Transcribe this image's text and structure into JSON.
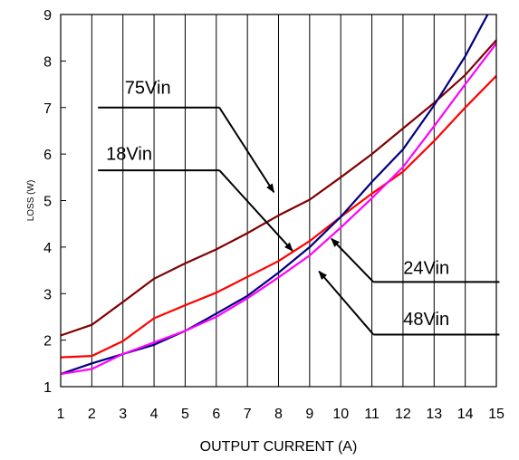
{
  "chart_data": {
    "type": "line",
    "xlabel": "OUTPUT CURRENT (A)",
    "ylabel": "LOSS (W)",
    "xlim": [
      1,
      15
    ],
    "ylim": [
      1,
      9
    ],
    "x_ticks": [
      1,
      2,
      3,
      4,
      5,
      6,
      7,
      8,
      9,
      10,
      11,
      12,
      13,
      14,
      15
    ],
    "y_ticks": [
      1,
      2,
      3,
      4,
      5,
      6,
      7,
      8,
      9
    ],
    "grid": "vertical",
    "series": [
      {
        "name": "75Vin",
        "color": "#800000",
        "x": [
          1,
          2,
          3,
          4,
          5,
          6,
          7,
          8,
          9,
          10,
          11,
          12,
          13,
          14,
          15
        ],
        "y": [
          2.1,
          2.33,
          2.82,
          3.32,
          3.65,
          3.95,
          4.3,
          4.68,
          5.02,
          5.5,
          6.0,
          6.55,
          7.1,
          7.7,
          8.45
        ]
      },
      {
        "name": "18Vin",
        "color": "#ff0000",
        "x": [
          1,
          2,
          3,
          4,
          5,
          6,
          7,
          8,
          9,
          10,
          11,
          12,
          13,
          14,
          15
        ],
        "y": [
          1.63,
          1.66,
          1.98,
          2.47,
          2.75,
          3.02,
          3.36,
          3.7,
          4.13,
          4.65,
          5.15,
          5.62,
          6.28,
          7.0,
          7.68
        ]
      },
      {
        "name": "24Vin",
        "color": "#000080",
        "x": [
          1,
          2,
          3,
          4,
          5,
          6,
          7,
          8,
          9,
          10,
          11,
          12,
          13,
          14,
          14.8
        ],
        "y": [
          1.27,
          1.5,
          1.7,
          1.9,
          2.2,
          2.57,
          2.95,
          3.45,
          4.0,
          4.65,
          5.4,
          6.1,
          7.05,
          8.1,
          9.1
        ]
      },
      {
        "name": "48Vin",
        "color": "#ff00ff",
        "x": [
          1,
          2,
          3,
          4,
          5,
          6,
          7,
          8,
          9,
          10,
          11,
          12,
          13,
          14,
          15
        ],
        "y": [
          1.27,
          1.38,
          1.7,
          1.95,
          2.2,
          2.5,
          2.9,
          3.35,
          3.82,
          4.42,
          5.05,
          5.72,
          6.6,
          7.5,
          8.38
        ]
      }
    ],
    "annotations": [
      {
        "text": "75Vin",
        "tx": 3.8,
        "ty": 7.3,
        "hline": [
          2.2,
          6.1,
          7.0
        ],
        "arrow_to": [
          7.85,
          5.18
        ]
      },
      {
        "text": "18Vin",
        "tx": 3.2,
        "ty": 5.88,
        "hline": [
          2.2,
          6.1,
          5.65
        ],
        "arrow_to": [
          8.45,
          3.92
        ]
      },
      {
        "text": "24Vin",
        "tx": 12.75,
        "ty": 3.42,
        "hline": [
          11.05,
          15.1,
          3.25
        ],
        "arrow_to": [
          9.7,
          4.18
        ]
      },
      {
        "text": "48Vin",
        "tx": 12.75,
        "ty": 2.32,
        "hline": [
          11.05,
          15.1,
          2.12
        ],
        "arrow_to": [
          9.3,
          3.48
        ]
      }
    ]
  }
}
